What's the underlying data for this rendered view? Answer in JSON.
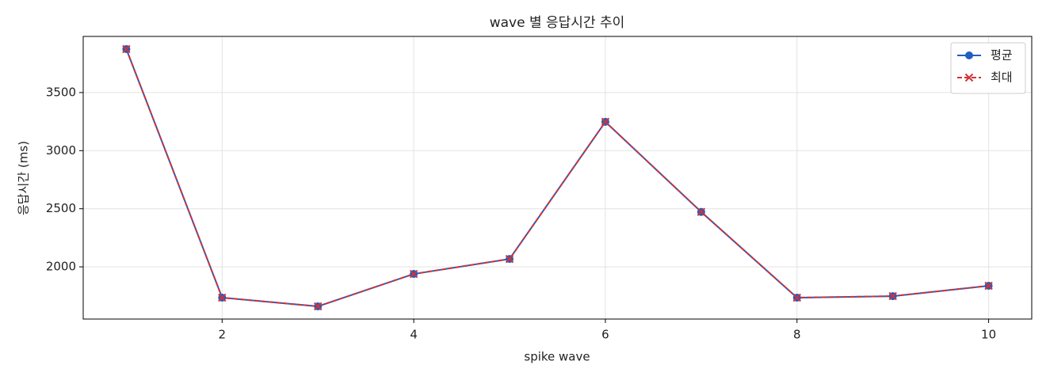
{
  "chart_data": {
    "type": "line",
    "title": "wave 별 응답시간 추이",
    "x_label": "spike wave",
    "y_label": "응답시간 (ms)",
    "x": [
      1,
      2,
      3,
      4,
      5,
      6,
      7,
      8,
      9,
      10
    ],
    "series": [
      {
        "name": "평균",
        "color": "#1f5fbf",
        "line_style": "solid",
        "marker": "circle",
        "values": [
          3874,
          1735,
          1660,
          1939,
          2068,
          3248,
          2473,
          1735,
          1748,
          1837
        ]
      },
      {
        "name": "최대",
        "color": "#d0333a",
        "line_style": "dashed",
        "marker": "x",
        "values": [
          3874,
          1735,
          1660,
          1939,
          2068,
          3248,
          2473,
          1735,
          1748,
          1837
        ]
      }
    ],
    "xlim": [
      0.55,
      10.45
    ],
    "ylim": [
      1551,
      3983
    ],
    "xticks": [
      2,
      4,
      6,
      8,
      10
    ],
    "yticks": [
      2000,
      2500,
      3000,
      3500
    ],
    "grid": true,
    "legend": "upper right"
  }
}
